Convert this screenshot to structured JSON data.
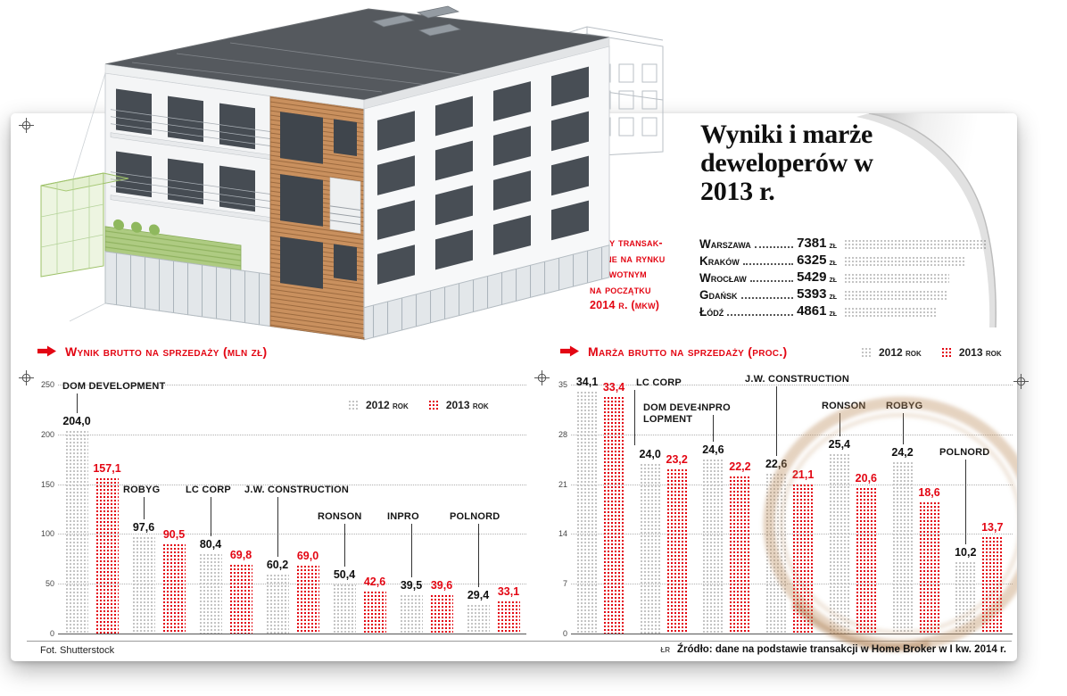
{
  "page": {
    "title": "Wyniki i marże deweloperów w 2013 r."
  },
  "prices": {
    "heading_lines": [
      "Ceny transak-",
      "cyjne na rynku",
      "pierwotnym",
      "na początku",
      "2014 r. (mkw)"
    ],
    "unit": "zł",
    "max_value": 7381,
    "items": [
      {
        "city": "Warszawa",
        "value": 7381,
        "display": "7381"
      },
      {
        "city": "Kraków",
        "value": 6325,
        "display": "6325"
      },
      {
        "city": "Wrocław",
        "value": 5429,
        "display": "5429"
      },
      {
        "city": "Gdańsk",
        "value": 5393,
        "display": "5393"
      },
      {
        "city": "Łódź",
        "value": 4861,
        "display": "4861"
      }
    ]
  },
  "chart_data": [
    {
      "type": "bar",
      "title": "Wynik brutto na sprzedaży (mln zł)",
      "categories": [
        "DOM DEVELOPMENT",
        "ROBYG",
        "LC CORP",
        "J.W. CONSTRUCTION",
        "RONSON",
        "INPRO",
        "POLNORD"
      ],
      "category_display": [
        [
          "DOM DEVELOPMENT"
        ],
        [
          "ROBYG"
        ],
        [
          "LC CORP"
        ],
        [
          "J.W. CONSTRUCTION"
        ],
        [
          "RONSON"
        ],
        [
          "INPRO"
        ],
        [
          "POLNORD"
        ]
      ],
      "series": [
        {
          "name": "2012 rok",
          "values": [
            204.0,
            97.6,
            80.4,
            60.2,
            50.4,
            39.5,
            29.4
          ],
          "labels": [
            "204,0",
            "97,6",
            "80,4",
            "60,2",
            "50,4",
            "39,5",
            "29,4"
          ]
        },
        {
          "name": "2013 rok",
          "values": [
            157.1,
            90.5,
            69.8,
            69.0,
            42.6,
            39.6,
            33.1
          ],
          "labels": [
            "157,1",
            "90,5",
            "69,8",
            "69,0",
            "42,6",
            "39,6",
            "33,1"
          ]
        }
      ],
      "ylim": [
        0,
        250
      ],
      "yticks": [
        0,
        50,
        100,
        150,
        200,
        250
      ],
      "grid": "dotted-horizontal",
      "legend_position": "top-right-inside"
    },
    {
      "type": "bar",
      "title": "Marża brutto na sprzedaży (proc.)",
      "categories": [
        "LC CORP",
        "DOM DEVELOPMENT",
        "INPRO",
        "J.W. CONSTRUCTION",
        "RONSON",
        "ROBYG",
        "POLNORD"
      ],
      "category_display": [
        [
          "LC CORP"
        ],
        [
          "DOM DEVE-",
          "LOPMENT"
        ],
        [
          "INPRO"
        ],
        [
          "J.W. CONSTRUCTION"
        ],
        [
          "RONSON"
        ],
        [
          "ROBYG"
        ],
        [
          "POLNORD"
        ]
      ],
      "series": [
        {
          "name": "2012 rok",
          "values": [
            34.1,
            24.0,
            24.6,
            22.6,
            25.4,
            24.2,
            10.2
          ],
          "labels": [
            "34,1",
            "24,0",
            "24,6",
            "22,6",
            "25,4",
            "24,2",
            "10,2"
          ]
        },
        {
          "name": "2013 rok",
          "values": [
            33.4,
            23.2,
            22.2,
            21.1,
            20.6,
            18.6,
            13.7
          ],
          "labels": [
            "33,4",
            "23,2",
            "22,2",
            "21,1",
            "20,6",
            "18,6",
            "13,7"
          ]
        }
      ],
      "ylim": [
        0,
        35
      ],
      "yticks": [
        0,
        7,
        14,
        21,
        28,
        35
      ],
      "grid": "dotted-horizontal",
      "legend_position": "top-right-outside"
    }
  ],
  "footer": {
    "photo_credit": "Fot. Shutterstock",
    "source_initials": "ŁR",
    "source_text": "Źródło: dane na podstawie transakcji w Home Broker w I kw. 2014 r."
  },
  "colors": {
    "accent_red": "#e30613",
    "bar_2012_gray": "#c3c3c3",
    "text": "#1a1a1a",
    "coffee_stain": "#ba8c5c"
  },
  "icons": {
    "section_arrow": "red-right-arrow",
    "registration_mark": "crosshair-circle"
  }
}
